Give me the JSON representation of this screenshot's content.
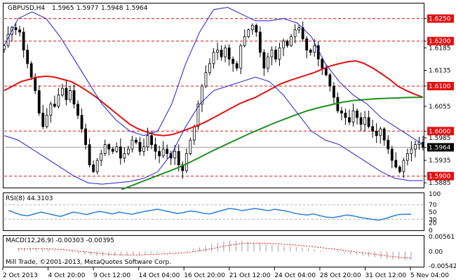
{
  "header": {
    "symbol": "GBPUSD,H4",
    "open": "1.5965",
    "high": "1.5977",
    "low": "1.5948",
    "close": "1.5964"
  },
  "colors": {
    "ma_fast": "#e01010",
    "ma_slow": "#1f8f1f",
    "bands": "#2020c8",
    "candles": "#000000",
    "levels": "#e01010",
    "rsi": "#2a7fd4",
    "macd": "#e01010",
    "price_tag": "#000000",
    "level_tag": "#e01010"
  },
  "chart_data": [
    {
      "type": "candlestick",
      "title": "GBPUSD,H4",
      "ylim": [
        1.5876,
        1.6282
      ],
      "x_tick_labels": [
        "2 Oct 2013",
        "4 Oct 20:00",
        "9 Oct 12:00",
        "14 Oct 04:00",
        "16 Oct 20:00",
        "21 Oct 12:00",
        "24 Oct 04:00",
        "28 Oct 20:00",
        "31 Oct 12:00",
        "5 Nov 04:00"
      ],
      "y_tick_labels": [
        "1.6250",
        "1.6200",
        "1.6185",
        "1.6135",
        "1.6100",
        "1.6055",
        "1.6000",
        "1.5985",
        "1.5964",
        "1.5935",
        "1.5900",
        "1.5885"
      ],
      "horizontal_levels": [
        1.625,
        1.62,
        1.61,
        1.6,
        1.59
      ],
      "current_price": 1.5964,
      "close": [
        1.619,
        1.6215,
        1.623,
        1.6225,
        1.622,
        1.618,
        1.615,
        1.612,
        1.609,
        1.604,
        1.601,
        1.6035,
        1.606,
        1.6055,
        1.608,
        1.6095,
        1.607,
        1.609,
        1.606,
        1.6035,
        1.6005,
        1.597,
        1.5925,
        1.591,
        1.5935,
        1.595,
        1.597,
        1.596,
        1.5955,
        1.5965,
        1.594,
        1.595,
        1.596,
        1.598,
        1.5975,
        1.5955,
        1.5965,
        1.599,
        1.597,
        1.5955,
        1.5945,
        1.596,
        1.595,
        1.594,
        1.5955,
        1.5925,
        1.5912,
        1.595,
        1.598,
        1.601,
        1.606,
        1.61,
        1.613,
        1.615,
        1.6175,
        1.618,
        1.6165,
        1.6185,
        1.616,
        1.615,
        1.614,
        1.619,
        1.621,
        1.6225,
        1.6235,
        1.622,
        1.6175,
        1.614,
        1.6165,
        1.618,
        1.616,
        1.6185,
        1.62,
        1.619,
        1.621,
        1.6225,
        1.623,
        1.6205,
        1.618,
        1.6175,
        1.619,
        1.616,
        1.614,
        1.6125,
        1.61,
        1.6075,
        1.6045,
        1.604,
        1.603,
        1.602,
        1.6045,
        1.603,
        1.6015,
        1.603,
        1.601,
        1.6,
        1.599,
        1.6005,
        1.598,
        1.596,
        1.5935,
        1.592,
        1.591,
        1.5935,
        1.595,
        1.596,
        1.597,
        1.5975,
        1.5964
      ],
      "series": [
        {
          "name": "MA fast",
          "values": [
            1.609,
            1.61,
            1.611,
            1.6115,
            1.612,
            1.6122,
            1.612,
            1.6115,
            1.611,
            1.61,
            1.6088,
            1.6075,
            1.606,
            1.6045,
            1.603,
            1.6015,
            1.6005,
            1.5998,
            1.5992,
            1.599,
            1.5992,
            1.5998,
            1.6005,
            1.6012,
            1.602,
            1.603,
            1.604,
            1.605,
            1.606,
            1.6068,
            1.6075,
            1.6085,
            1.6095,
            1.6105,
            1.6112,
            1.6118,
            1.6124,
            1.613,
            1.6138,
            1.6145,
            1.615,
            1.6154,
            1.6156,
            1.615,
            1.614,
            1.6128,
            1.6115,
            1.61,
            1.609,
            1.6082,
            1.6075
          ]
        },
        {
          "name": "MA slow",
          "values": [
            1.587,
            1.588,
            1.589,
            1.59,
            1.591,
            1.592,
            1.5932,
            1.5945,
            1.5958,
            1.597,
            1.5982,
            1.5994,
            1.6005,
            1.6016,
            1.6026,
            1.6036,
            1.6045,
            1.6052,
            1.6058,
            1.6064,
            1.6068,
            1.607,
            1.6072,
            1.6073,
            1.6074,
            1.6075,
            1.6075
          ]
        },
        {
          "name": "Bands upper",
          "values": [
            1.619,
            1.625,
            1.6265,
            1.625,
            1.621,
            1.616,
            1.611,
            1.606,
            1.6025,
            1.6,
            1.599,
            1.6,
            1.606,
            1.615,
            1.622,
            1.627,
            1.6275,
            1.626,
            1.6245,
            1.6245,
            1.625,
            1.624,
            1.621,
            1.615,
            1.611,
            1.608,
            1.606,
            1.603,
            1.601,
            1.599,
            1.597
          ]
        },
        {
          "name": "Bands lower",
          "values": [
            1.599,
            1.598,
            1.596,
            1.594,
            1.592,
            1.59,
            1.5885,
            1.5882,
            1.5885,
            1.5888,
            1.5895,
            1.591,
            1.595,
            1.601,
            1.606,
            1.609,
            1.61,
            1.611,
            1.612,
            1.611,
            1.608,
            1.604,
            1.6,
            1.598,
            1.597,
            1.595,
            1.593,
            1.591,
            1.5895,
            1.589,
            1.589
          ]
        }
      ]
    },
    {
      "type": "line",
      "title": "RSI(8) 44.3103",
      "ylim": [
        0,
        100
      ],
      "y_tick_labels": [
        "100",
        "70",
        "50",
        "30",
        "20",
        "0"
      ],
      "levels": [
        70,
        30
      ],
      "values": [
        55,
        48,
        42,
        40,
        45,
        50,
        46,
        42,
        38,
        44,
        50,
        47,
        43,
        48,
        52,
        49,
        45,
        50,
        47,
        44,
        48,
        52,
        55,
        58,
        54,
        50,
        46,
        49,
        53,
        51,
        47,
        45,
        50,
        55,
        60,
        58,
        54,
        57,
        60,
        57,
        54,
        58,
        55,
        52,
        47,
        44,
        42,
        45,
        40,
        36,
        35,
        38,
        42,
        40,
        36,
        33,
        30,
        28,
        32,
        38,
        43,
        44,
        44
      ]
    },
    {
      "type": "bar",
      "title": "MACD(12,26,9) -0.00303 -0.00395",
      "ylim": [
        -0.00542,
        0.00561
      ],
      "y_tick_labels": [
        "0.00561",
        "0.00",
        "-0.00542"
      ],
      "values": [
        0.001,
        0.0012,
        0.0013,
        0.0012,
        0.001,
        0.0008,
        0.0005,
        0.0002,
        -0.0001,
        -0.0004,
        -0.0008,
        -0.0011,
        -0.0014,
        -0.0016,
        -0.0017,
        -0.0018,
        -0.0017,
        -0.0016,
        -0.0015,
        -0.0013,
        -0.0011,
        -0.0009,
        -0.0008,
        -0.0006,
        -0.0005,
        -0.0004,
        -0.0002,
        0.0001,
        0.0005,
        0.001,
        0.0016,
        0.0022,
        0.0028,
        0.0033,
        0.0037,
        0.004,
        0.0041,
        0.004,
        0.0037,
        0.0034,
        0.0031,
        0.0028,
        0.0026,
        0.0024,
        0.0022,
        0.002,
        0.0017,
        0.0014,
        0.0011,
        0.0008,
        0.0005,
        0.0002,
        -0.0001,
        -0.0004,
        -0.0007,
        -0.001,
        -0.0013,
        -0.0016,
        -0.0019,
        -0.0022,
        -0.0025,
        -0.0028,
        -0.003,
        -0.0031,
        -0.0031,
        -0.003
      ]
    }
  ],
  "watermark": "Mill Trade, ©2001-2013, MetaQuotes Software Corp."
}
